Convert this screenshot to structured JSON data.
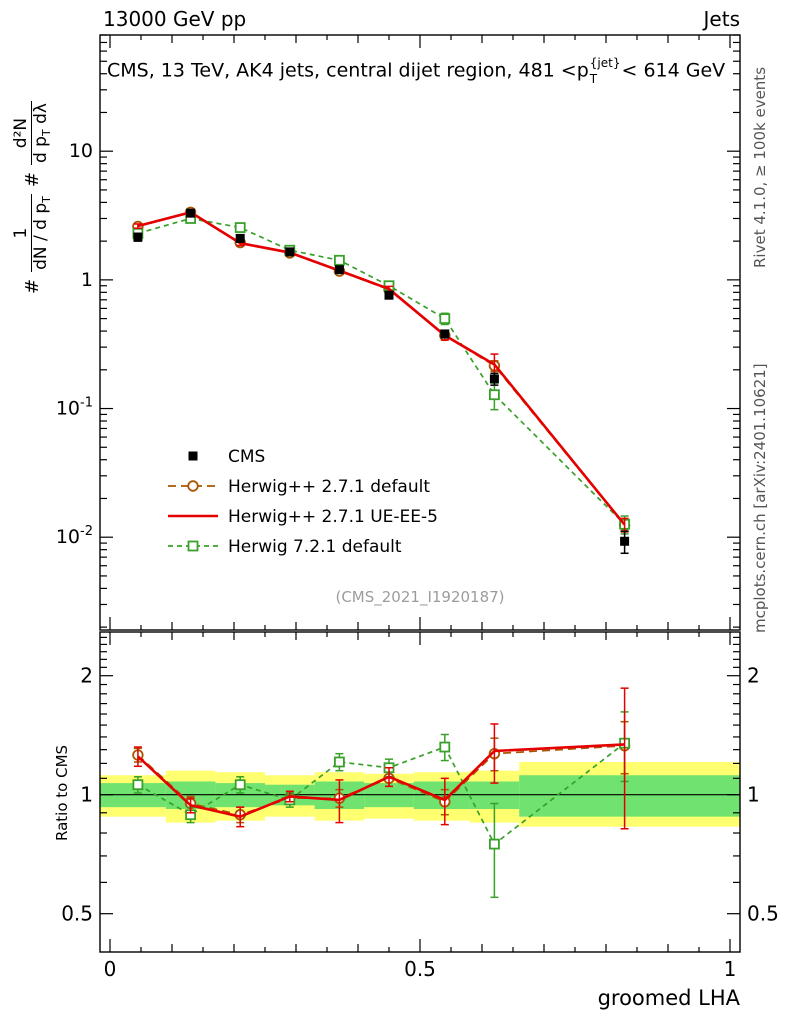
{
  "header": {
    "left": "13000 GeV pp",
    "right": "Jets"
  },
  "title": {
    "part1": "CMS, 13 TeV, AK4 jets, central dijet region, 481 <p",
    "sup": "{jet}",
    "sub": "T",
    "part2": "< 614 GeV"
  },
  "watermark": "(CMS_2021_I1920187)",
  "rivet_label": "Rivet 4.1.0, ≥ 100k events",
  "mcplots_label": "mcplots.cern.ch [arXiv:2401.10621]",
  "ylabel_ratio": "Ratio to CMS",
  "xlabel": "groomed LHA",
  "ylabel_main": {
    "hash1": "#",
    "frac1_num": "1",
    "frac1_den": "dN / d p",
    "frac1_den_sub": "T",
    "hash2": "#",
    "frac2_num": "d²N",
    "frac2_den": "d p",
    "frac2_den_sub": "T",
    "frac2_den_tail": " dλ"
  },
  "chart_data": {
    "type": "line",
    "title": "CMS, 13 TeV, AK4 jets, central dijet region, 481 < pT^jet < 614 GeV",
    "xlabel": "groomed LHA",
    "ylabel": "# 1/(dN/dpT) d²N/(dpT dλ)",
    "x": [
      0.045,
      0.13,
      0.21,
      0.29,
      0.37,
      0.45,
      0.54,
      0.62,
      0.83
    ],
    "x_axis": {
      "lim": [
        0,
        1
      ],
      "major_ticks": [
        0,
        0.5,
        1
      ],
      "minor_step": 0.05
    },
    "main_axis": {
      "scale": "log",
      "lim": [
        0.0019,
        80
      ],
      "major_ticks": [
        0.01,
        0.1,
        1,
        10
      ]
    },
    "ratio_axis": {
      "scale": "log",
      "lim": [
        0.4,
        2.58
      ],
      "major_ticks": [
        0.5,
        1,
        2
      ],
      "label": "Ratio to CMS"
    },
    "series": [
      {
        "name": "CMS",
        "color": "#000000",
        "marker": "square-filled",
        "line": "none",
        "values": [
          2.15,
          3.3,
          2.1,
          1.65,
          1.2,
          0.76,
          0.38,
          0.17,
          0.0093
        ],
        "yerr": [
          0.15,
          0.18,
          0.12,
          0.08,
          0.06,
          0.045,
          0.025,
          0.018,
          0.0018
        ]
      },
      {
        "name": "Herwig++ 2.7.1 default",
        "color": "#aa5500",
        "marker": "circle-open",
        "line": "dashed",
        "dash": "8,5",
        "values": [
          2.6,
          3.35,
          1.95,
          1.62,
          1.17,
          0.84,
          0.37,
          0.215,
          0.0124
        ],
        "yerr": [
          0.12,
          0.12,
          0.08,
          0.06,
          0.05,
          0.04,
          0.025,
          0.02,
          0.0012
        ],
        "ratio": [
          1.26,
          0.95,
          0.89,
          0.98,
          0.98,
          1.1,
          0.96,
          1.27,
          1.33
        ],
        "ratio_err": [
          0.05,
          0.04,
          0.04,
          0.03,
          0.05,
          0.05,
          0.07,
          0.12,
          0.2
        ]
      },
      {
        "name": "Herwig++ 2.7.1 UE-EE-5",
        "color": "#e50000",
        "marker": "none",
        "line": "solid",
        "values": [
          2.62,
          3.35,
          1.93,
          1.63,
          1.18,
          0.85,
          0.37,
          0.22,
          0.0125
        ],
        "yerr": [
          0.1,
          0.12,
          0.08,
          0.06,
          0.05,
          0.04,
          0.03,
          0.045,
          0.0015
        ],
        "ratio": [
          1.25,
          0.94,
          0.88,
          0.99,
          0.97,
          1.11,
          0.97,
          1.29,
          1.34
        ],
        "ratio_err": [
          0.07,
          0.04,
          0.05,
          0.03,
          0.12,
          0.06,
          0.13,
          0.22,
          0.52
        ]
      },
      {
        "name": "Herwig 7.2.1 default",
        "color": "#39a029",
        "marker": "square-open",
        "line": "dashed",
        "dash": "5,4",
        "values": [
          2.3,
          3.0,
          2.55,
          1.7,
          1.42,
          0.9,
          0.5,
          0.128,
          0.0126
        ],
        "yerr": [
          0.12,
          0.15,
          0.13,
          0.09,
          0.08,
          0.06,
          0.05,
          0.03,
          0.002
        ],
        "ratio": [
          1.06,
          0.89,
          1.06,
          0.97,
          1.21,
          1.17,
          1.32,
          0.75,
          1.35
        ],
        "ratio_err": [
          0.05,
          0.04,
          0.05,
          0.04,
          0.06,
          0.06,
          0.1,
          0.2,
          0.27
        ]
      }
    ],
    "ratio_bands": {
      "bin_edges": [
        0,
        0.09,
        0.17,
        0.25,
        0.33,
        0.41,
        0.49,
        0.58,
        0.66,
        1.0
      ],
      "yellow_lo": [
        0.88,
        0.85,
        0.86,
        0.88,
        0.86,
        0.87,
        0.86,
        0.85,
        0.83
      ],
      "yellow_hi": [
        1.12,
        1.15,
        1.14,
        1.12,
        1.14,
        1.13,
        1.14,
        1.15,
        1.21
      ],
      "green_lo": [
        0.93,
        0.92,
        0.93,
        0.94,
        0.92,
        0.93,
        0.92,
        0.92,
        0.88
      ],
      "green_hi": [
        1.07,
        1.08,
        1.07,
        1.06,
        1.08,
        1.07,
        1.08,
        1.08,
        1.12
      ],
      "colors": {
        "yellow": "#ffff70",
        "green": "#6fe26f"
      }
    },
    "legend_position": "middle-left",
    "grid": false
  }
}
